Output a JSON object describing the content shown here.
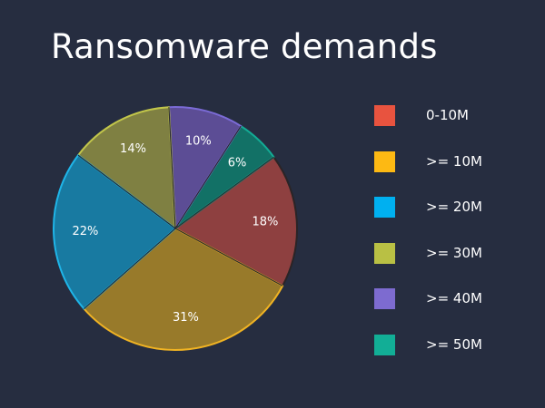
{
  "chart_data": {
    "type": "pie",
    "title": "Ransomware demands",
    "categories": [
      "0-10M",
      ">= 10M",
      ">= 20M",
      ">= 30M",
      ">= 40M",
      ">= 50M"
    ],
    "values": [
      18,
      31,
      22,
      14,
      10,
      6
    ],
    "value_labels": [
      "18%",
      "31%",
      "22%",
      "14%",
      "10%",
      "6%"
    ],
    "unit": "%",
    "legend_position": "right",
    "colors": {
      "fills": [
        "#8e4040",
        "#987a2a",
        "#187aa1",
        "#7f8042",
        "#5c4d95",
        "#127166"
      ],
      "edges": [
        "#2a2426",
        "#f0b323",
        "#1fb5e8",
        "#c2c64a",
        "#7b6bd6",
        "#13ab95"
      ],
      "legend_swatches": [
        "#e8533f",
        "#fdb913",
        "#00b0f0",
        "#b9c044",
        "#7d6bd0",
        "#12ae96"
      ]
    }
  }
}
